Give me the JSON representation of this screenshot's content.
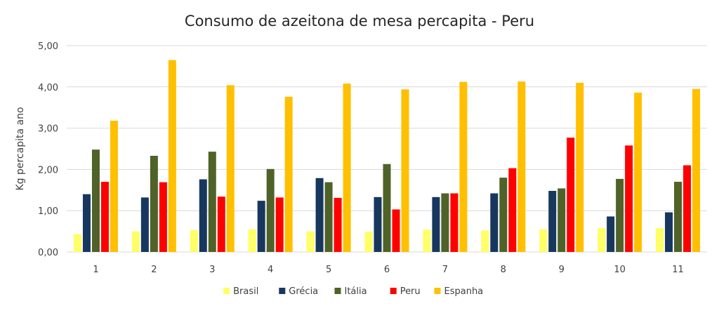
{
  "chart_data": {
    "type": "bar",
    "title": "Consumo de azeitona de mesa percapita - Peru",
    "xlabel": "",
    "ylabel": "Kg percapita ano",
    "ylim": [
      0,
      5
    ],
    "yticks": [
      "0,00",
      "1,00",
      "2,00",
      "3,00",
      "4,00",
      "5,00"
    ],
    "grid": true,
    "legend_position": "bottom",
    "categories": [
      "1",
      "2",
      "3",
      "4",
      "5",
      "6",
      "7",
      "8",
      "9",
      "10",
      "11"
    ],
    "series": [
      {
        "name": "Brasil",
        "color": "#FFFF66",
        "values": [
          0.43,
          0.5,
          0.53,
          0.55,
          0.5,
          0.49,
          0.54,
          0.52,
          0.55,
          0.58,
          0.58
        ]
      },
      {
        "name": "Grécia",
        "color": "#17375E",
        "values": [
          1.4,
          1.32,
          1.76,
          1.24,
          1.79,
          1.33,
          1.33,
          1.42,
          1.48,
          0.86,
          0.96
        ]
      },
      {
        "name": "Itália",
        "color": "#4F6228",
        "values": [
          2.48,
          2.33,
          2.43,
          2.01,
          1.69,
          2.13,
          1.42,
          1.8,
          1.54,
          1.77,
          1.7
        ]
      },
      {
        "name": "Peru",
        "color": "#FF0000",
        "values": [
          1.7,
          1.69,
          1.34,
          1.32,
          1.31,
          1.03,
          1.42,
          2.03,
          2.77,
          2.58,
          2.1
        ]
      },
      {
        "name": "Espanha",
        "color": "#FFC000",
        "values": [
          3.18,
          4.65,
          4.04,
          3.76,
          4.08,
          3.94,
          4.12,
          4.13,
          4.1,
          3.86,
          3.95
        ]
      }
    ]
  }
}
